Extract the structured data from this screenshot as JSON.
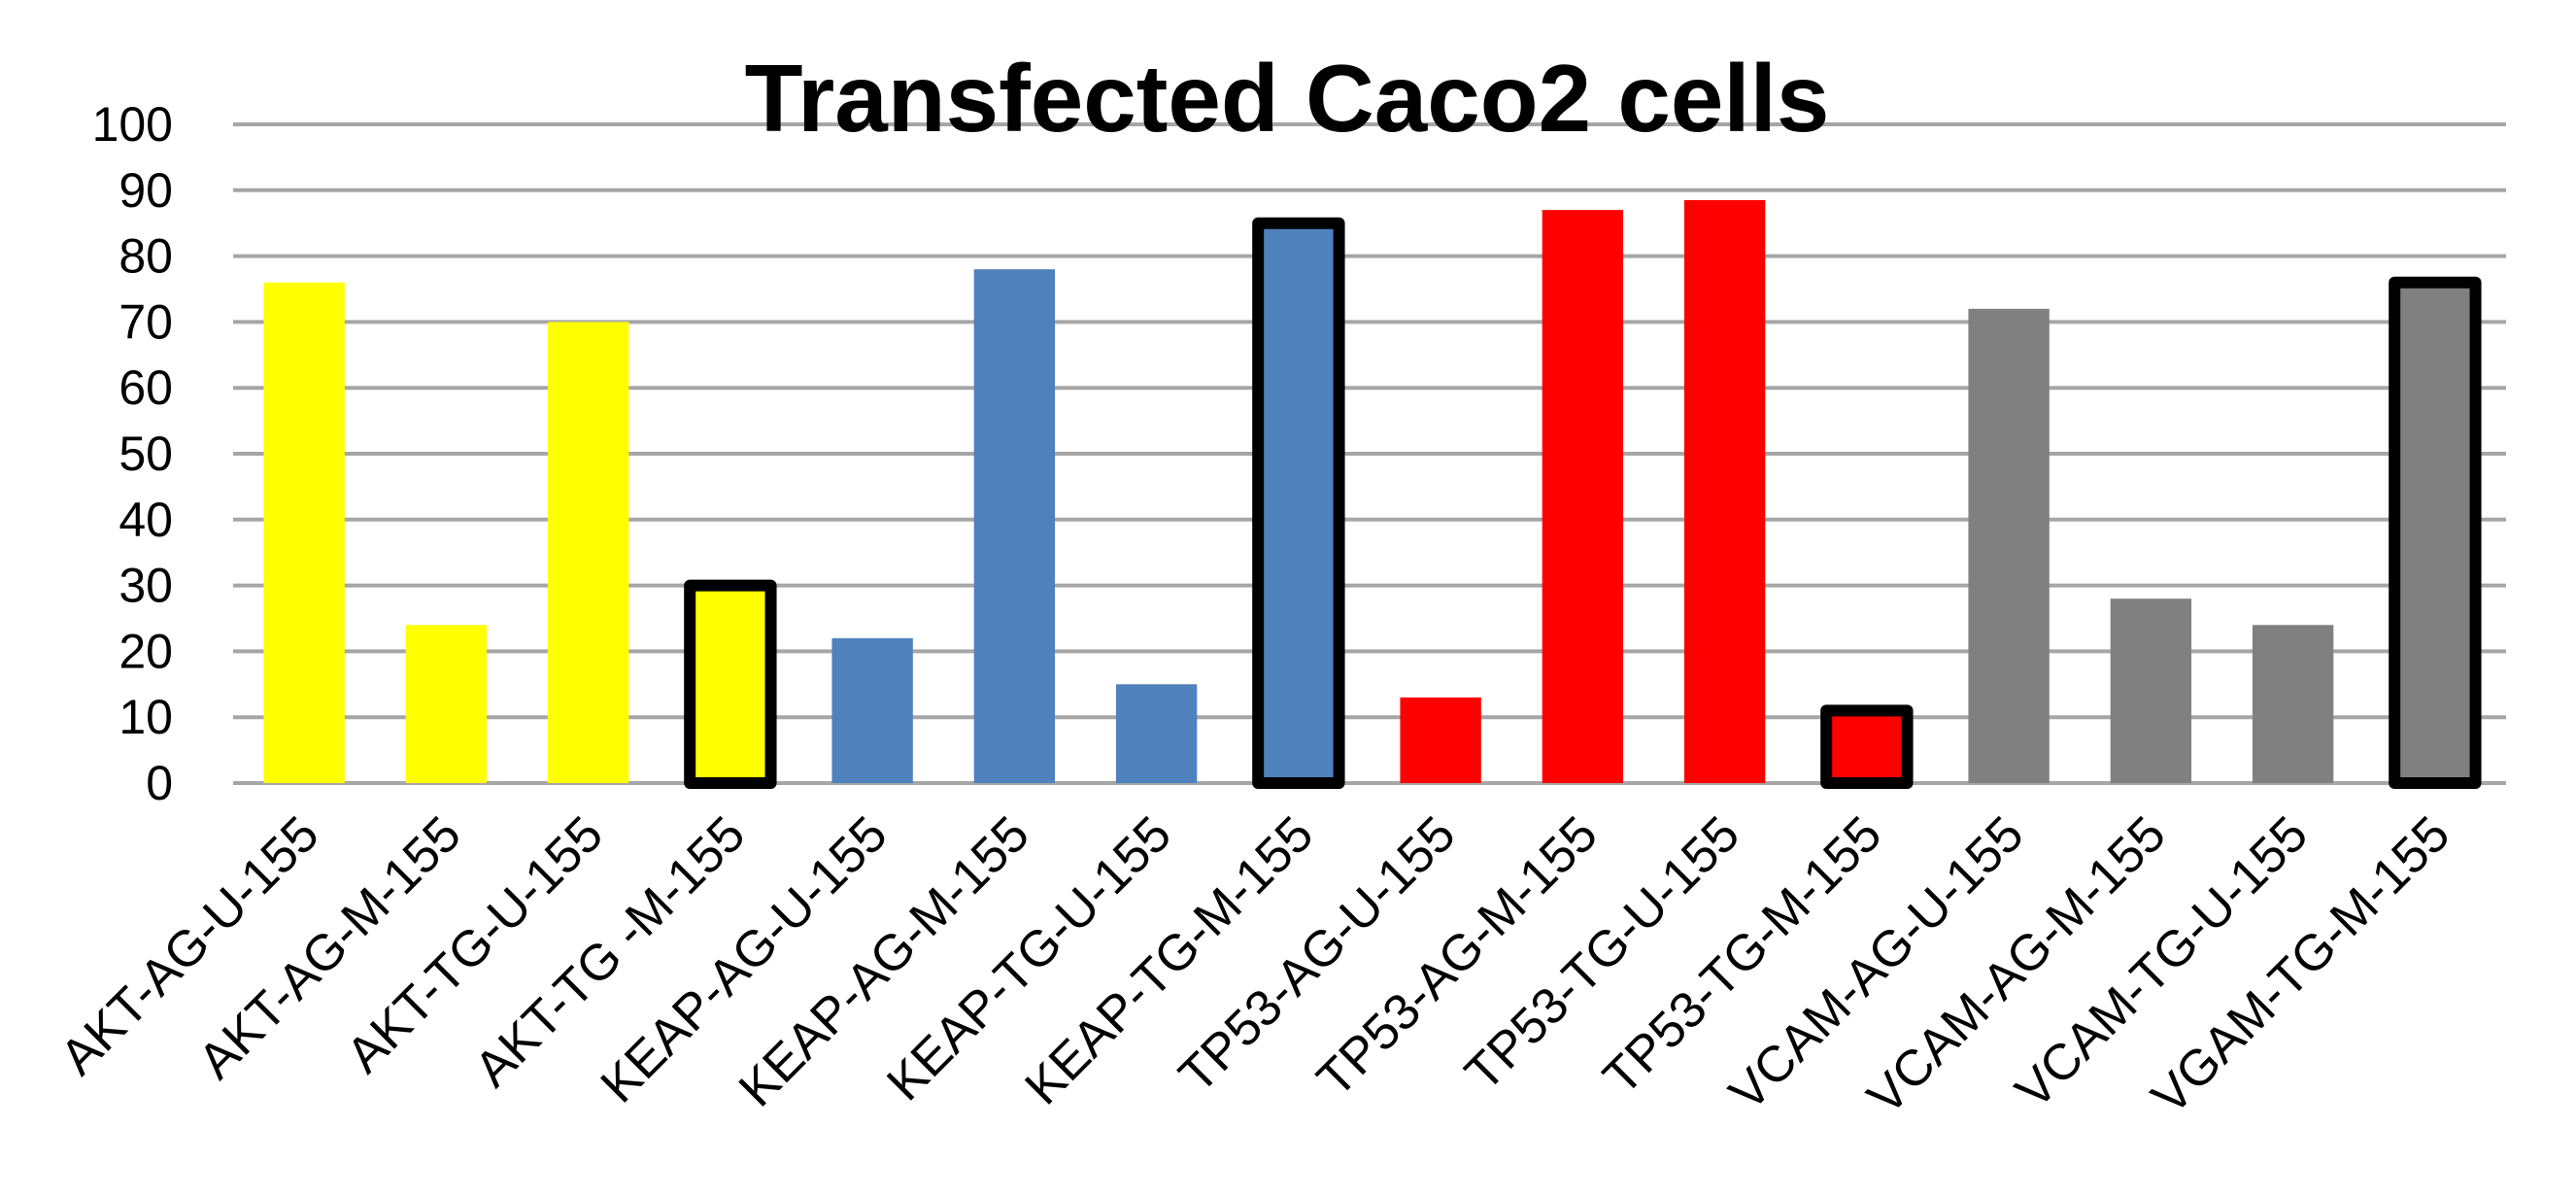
{
  "chart_data": {
    "type": "bar",
    "title": "Transfected Caco2  cells",
    "xlabel": "",
    "ylabel": "",
    "ylim": [
      0,
      100
    ],
    "yticks": [
      0,
      10,
      20,
      30,
      40,
      50,
      60,
      70,
      80,
      90,
      100
    ],
    "grid": true,
    "legend": "none",
    "categories": [
      "AKT-AG-U-155",
      "AKT-AG-M-155",
      "AKT-TG-U-155",
      "AKT-TG -M-155",
      "KEAP-AG-U-155",
      "KEAP-AG-M-155",
      "KEAP-TG-U-155",
      "KEAP-TG-M-155",
      "TP53-AG-U-155",
      "TP53-AG-M-155",
      "TP53-TG-U-155",
      "TP53-TG-M-155",
      "VCAM-AG-U-155",
      "VCAM-AG-M-155",
      "VCAM-TG-U-155",
      "VGAM-TG-M-155"
    ],
    "values": [
      76,
      24,
      70,
      30,
      22,
      78,
      15,
      85,
      13,
      87,
      88.5,
      11,
      72,
      28,
      24,
      76
    ],
    "bar_colors": [
      "#FFFF00",
      "#FFFF00",
      "#FFFF00",
      "#FFFF00",
      "#4F81BD",
      "#4F81BD",
      "#4F81BD",
      "#4F81BD",
      "#FF0000",
      "#FF0000",
      "#FF0000",
      "#FF0000",
      "#808080",
      "#808080",
      "#808080",
      "#808080"
    ],
    "outlined": [
      false,
      false,
      false,
      true,
      false,
      false,
      false,
      true,
      false,
      false,
      false,
      true,
      false,
      false,
      false,
      true
    ],
    "outline_color": "#000000",
    "grid_color": "#A6A6A6"
  }
}
